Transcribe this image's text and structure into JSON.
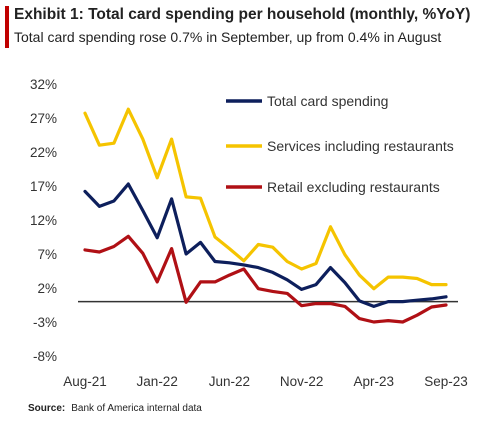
{
  "header": {
    "title": "Exhibit 1: Total card spending per household (monthly, %YoY)",
    "subtitle": "Total card spending rose 0.7% in September, up from 0.4% in August"
  },
  "source": {
    "label": "Source:",
    "text": "Bank of America internal data"
  },
  "colors": {
    "accent": "#c00000",
    "total": "#0d1f5c",
    "services": "#f5c400",
    "retail": "#b01015",
    "zero_line": "#333333"
  },
  "chart_data": {
    "type": "line",
    "title": "Exhibit 1: Total card spending per household (monthly, %YoY)",
    "subtitle": "Total card spending rose 0.7% in September, up from 0.4% in August",
    "xlabel": "",
    "ylabel": "",
    "x": [
      "Aug-21",
      "Sep-21",
      "Oct-21",
      "Nov-21",
      "Dec-21",
      "Jan-22",
      "Feb-22",
      "Mar-22",
      "Apr-22",
      "May-22",
      "Jun-22",
      "Jul-22",
      "Aug-22",
      "Sep-22",
      "Oct-22",
      "Nov-22",
      "Dec-22",
      "Jan-23",
      "Feb-23",
      "Mar-23",
      "Apr-23",
      "May-23",
      "Jun-23",
      "Jul-23",
      "Aug-23",
      "Sep-23"
    ],
    "x_tick_labels": [
      "Aug-21",
      "Jan-22",
      "Jun-22",
      "Nov-22",
      "Apr-23",
      "Sep-23"
    ],
    "x_tick_indices": [
      0,
      5,
      10,
      15,
      20,
      25
    ],
    "ylim": [
      -8,
      32
    ],
    "y_ticks": [
      -8,
      -3,
      2,
      7,
      12,
      17,
      22,
      27,
      32
    ],
    "y_tick_labels": [
      "-8%",
      "-3%",
      "2%",
      "7%",
      "12%",
      "17%",
      "22%",
      "27%",
      "32%"
    ],
    "zero_line": 0,
    "grid": false,
    "legend_position": "top-right",
    "series": [
      {
        "name": "Total card spending",
        "color": "#0d1f5c",
        "values": [
          16.2,
          14.0,
          14.8,
          17.3,
          13.4,
          9.4,
          15.1,
          7.0,
          8.7,
          5.9,
          5.7,
          5.4,
          5.0,
          4.3,
          3.2,
          1.8,
          2.5,
          5.0,
          2.8,
          0.1,
          -0.7,
          0.0,
          0.0,
          0.2,
          0.4,
          0.7
        ]
      },
      {
        "name": "Services including restaurants",
        "color": "#f5c400",
        "values": [
          27.7,
          23.0,
          23.3,
          28.3,
          23.9,
          18.2,
          23.9,
          15.4,
          15.2,
          9.5,
          7.8,
          6.0,
          8.4,
          8.0,
          5.9,
          4.8,
          5.6,
          11.0,
          6.9,
          3.9,
          1.9,
          3.6,
          3.6,
          3.4,
          2.5,
          2.5
        ]
      },
      {
        "name": "Retail excluding restaurants",
        "color": "#b01015",
        "values": [
          7.6,
          7.3,
          8.1,
          9.6,
          7.1,
          2.9,
          7.8,
          -0.1,
          2.9,
          2.9,
          3.9,
          4.8,
          1.9,
          1.5,
          1.2,
          -0.6,
          -0.3,
          -0.3,
          -0.7,
          -2.5,
          -3.0,
          -2.8,
          -3.0,
          -2.0,
          -0.8,
          -0.5
        ]
      }
    ]
  }
}
